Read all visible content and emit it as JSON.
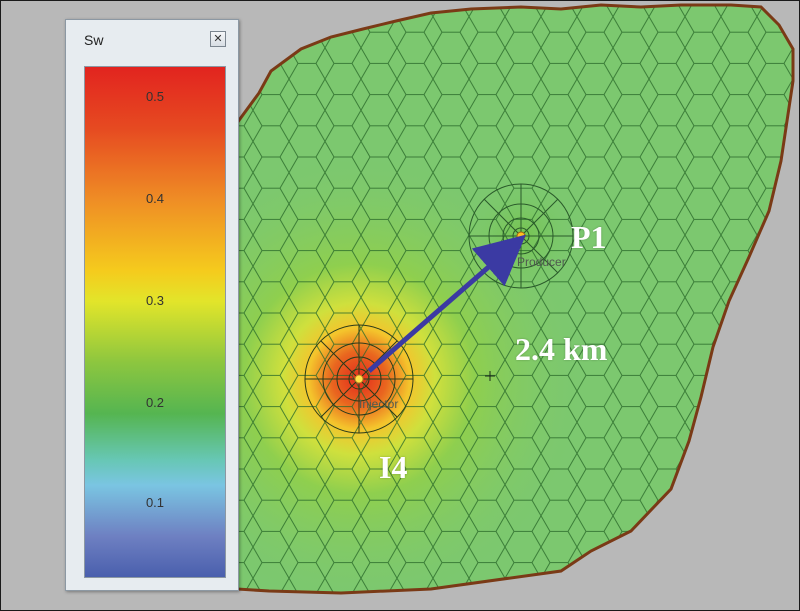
{
  "legend": {
    "title": "Sw",
    "close_glyph": "✕",
    "ticks": [
      "0.5",
      "0.4",
      "0.3",
      "0.2",
      "0.1"
    ]
  },
  "wells": {
    "producer_label": "P1",
    "producer_caption": "Producer",
    "injector_label": "I4",
    "injector_caption": "Injector"
  },
  "distance_label": "2.4 km",
  "colors": {
    "background": "#b8b8b8",
    "boundary": "#7a3a16",
    "cell_edge": "#2a6a2a",
    "arrow": "#3b3aa3"
  }
}
